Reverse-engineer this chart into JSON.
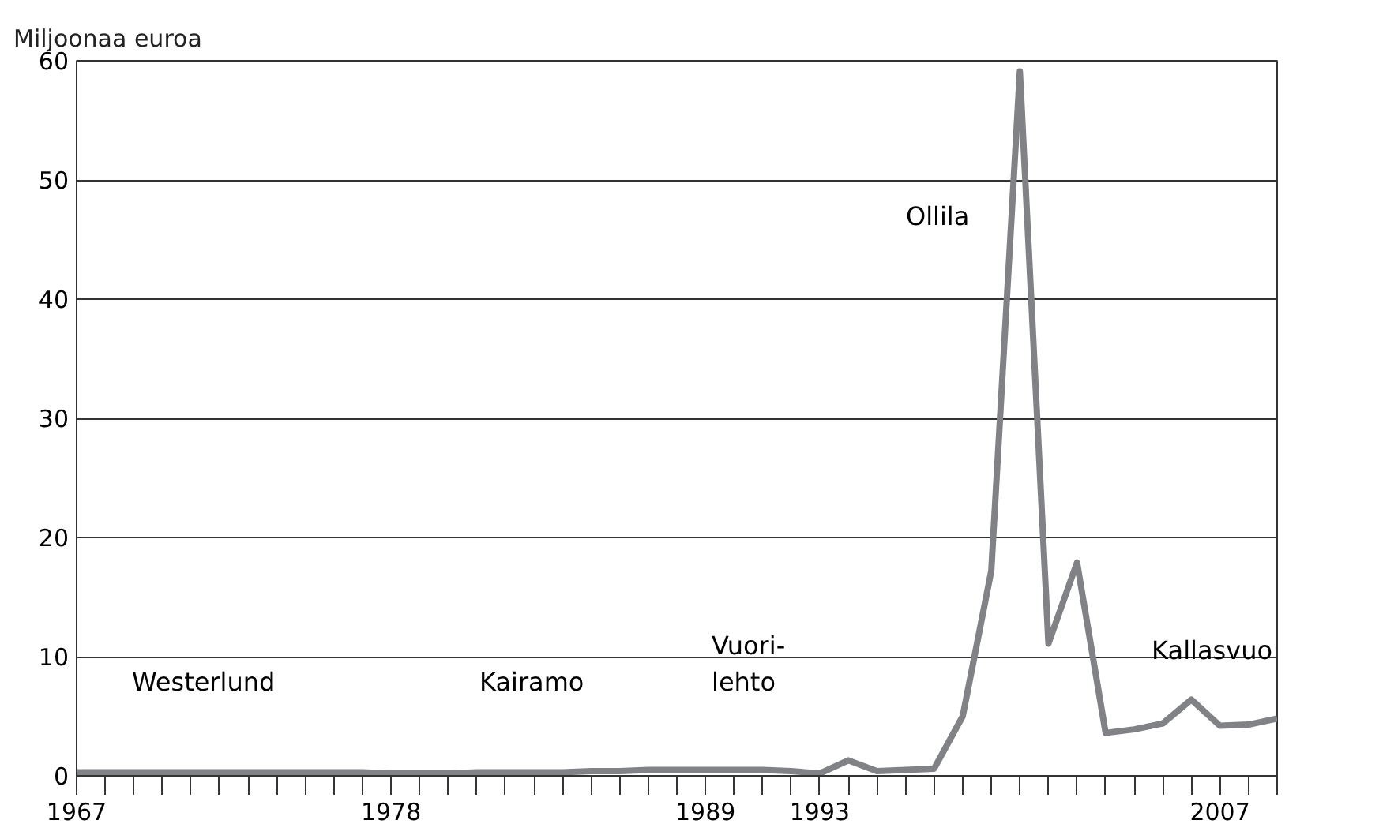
{
  "chart_data": {
    "type": "line",
    "ylabel": "Miljoonaa euroa",
    "x": [
      1967,
      1968,
      1969,
      1970,
      1971,
      1972,
      1973,
      1974,
      1975,
      1976,
      1977,
      1978,
      1979,
      1980,
      1981,
      1982,
      1983,
      1984,
      1985,
      1986,
      1987,
      1988,
      1989,
      1990,
      1991,
      1992,
      1993,
      1994,
      1995,
      1996,
      1997,
      1998,
      1999,
      2000,
      2001,
      2002,
      2003,
      2004,
      2005,
      2006,
      2007,
      2008,
      2009
    ],
    "series": [
      {
        "color": "#808285",
        "values": [
          0.3,
          0.3,
          0.3,
          0.3,
          0.3,
          0.3,
          0.3,
          0.3,
          0.3,
          0.3,
          0.3,
          0.2,
          0.2,
          0.2,
          0.3,
          0.3,
          0.3,
          0.3,
          0.4,
          0.4,
          0.5,
          0.5,
          0.5,
          0.5,
          0.5,
          0.4,
          0.2,
          1.3,
          0.4,
          0.5,
          0.6,
          5.0,
          17.2,
          59.1,
          11.1,
          17.9,
          3.6,
          3.9,
          4.4,
          6.4,
          4.2,
          4.3,
          4.8
        ]
      }
    ],
    "xlim": [
      1967,
      2009
    ],
    "ylim": [
      0,
      60
    ],
    "yticks": [
      0,
      10,
      20,
      30,
      40,
      50,
      60
    ],
    "xticks": [
      1967,
      {
        "value": 1968,
        "label": null
      },
      {
        "value": 1969,
        "label": null
      },
      {
        "value": 1970,
        "label": null
      },
      {
        "value": 1971,
        "label": null
      },
      {
        "value": 1972,
        "label": null
      },
      {
        "value": 1973,
        "label": null
      },
      {
        "value": 1974,
        "label": null
      },
      {
        "value": 1975,
        "label": null
      },
      {
        "value": 1976,
        "label": null
      },
      {
        "value": 1977,
        "label": null
      },
      1978,
      {
        "value": 1979,
        "label": null
      },
      {
        "value": 1980,
        "label": null
      },
      {
        "value": 1981,
        "label": null
      },
      {
        "value": 1982,
        "label": null
      },
      {
        "value": 1983,
        "label": null
      },
      {
        "value": 1984,
        "label": null
      },
      {
        "value": 1985,
        "label": null
      },
      {
        "value": 1986,
        "label": null
      },
      {
        "value": 1987,
        "label": null
      },
      {
        "value": 1988,
        "label": null
      },
      1989,
      {
        "value": 1990,
        "label": null
      },
      {
        "value": 1991,
        "label": null
      },
      {
        "value": 1992,
        "label": null
      },
      1993,
      {
        "value": 1994,
        "label": null
      },
      {
        "value": 1995,
        "label": null
      },
      {
        "value": 1996,
        "label": null
      },
      {
        "value": 1997,
        "label": null
      },
      {
        "value": 1998,
        "label": null
      },
      {
        "value": 1999,
        "label": null
      },
      {
        "value": 2000,
        "label": null
      },
      {
        "value": 2001,
        "label": null
      },
      {
        "value": 2002,
        "label": null
      },
      {
        "value": 2003,
        "label": null
      },
      {
        "value": 2004,
        "label": null
      },
      {
        "value": 2005,
        "label": null
      },
      {
        "value": 2006,
        "label": null
      },
      2007,
      {
        "value": 2008,
        "label": null
      },
      {
        "value": 2009,
        "label": null
      }
    ],
    "grid": "y",
    "line_style": "solid",
    "marker": "none",
    "annotations": [
      "Westerlund",
      "Kairamo",
      "Vuori-\nlehto",
      "Ollila",
      "Kallasvuo"
    ]
  }
}
